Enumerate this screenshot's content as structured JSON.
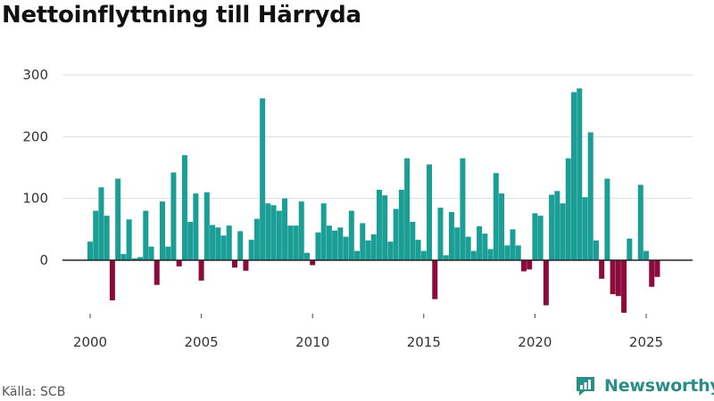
{
  "title": "Nettoinflyttning till Härryda",
  "source": "Källa: SCB",
  "brand": "Newsworthy",
  "colors": {
    "positive": "#1a9e96",
    "negative": "#8c0a3c",
    "brand": "#2a8d86",
    "grid": "#dddddd",
    "zero": "#222222"
  },
  "chart_data": {
    "type": "bar",
    "title": "Nettoinflyttning till Härryda",
    "xlabel": "",
    "ylabel": "",
    "x_start": 2000.0,
    "x_step": 0.25,
    "x_labels": [
      "2000",
      "2005",
      "2010",
      "2015",
      "2020",
      "2025"
    ],
    "x_label_positions": [
      2000,
      2005,
      2010,
      2015,
      2020,
      2025
    ],
    "xlim": [
      1999.0,
      2027.5
    ],
    "y_ticks": [
      "0",
      "100",
      "200",
      "300"
    ],
    "y_tick_values": [
      0,
      100,
      200,
      300
    ],
    "ylim": [
      -90,
      310
    ],
    "grid": true,
    "values": [
      30,
      80,
      118,
      72,
      -65,
      132,
      10,
      66,
      3,
      5,
      80,
      22,
      -40,
      95,
      22,
      142,
      -10,
      170,
      62,
      108,
      -33,
      110,
      57,
      53,
      40,
      56,
      -12,
      47,
      -17,
      33,
      67,
      262,
      92,
      89,
      80,
      100,
      56,
      56,
      95,
      12,
      -8,
      45,
      92,
      56,
      48,
      53,
      38,
      80,
      15,
      60,
      32,
      42,
      114,
      105,
      30,
      83,
      114,
      165,
      62,
      33,
      15,
      155,
      -63,
      85,
      8,
      78,
      53,
      165,
      38,
      15,
      55,
      43,
      18,
      141,
      108,
      24,
      50,
      24,
      -18,
      -15,
      76,
      72,
      -73,
      106,
      112,
      92,
      165,
      272,
      278,
      102,
      207,
      32,
      -30,
      132,
      -55,
      -58,
      -85,
      35,
      0,
      122,
      15,
      -43,
      -27
    ]
  }
}
